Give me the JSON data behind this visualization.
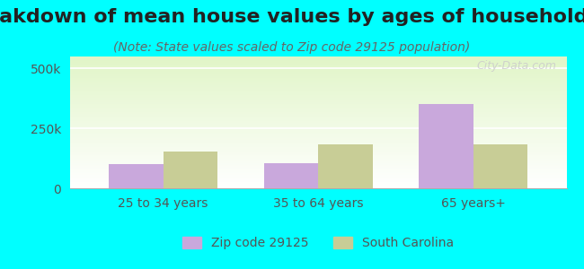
{
  "title": "Breakdown of mean house values by ages of householders",
  "subtitle": "(Note: State values scaled to Zip code 29125 population)",
  "categories": [
    "25 to 34 years",
    "35 to 64 years",
    "65 years+"
  ],
  "zip_values": [
    100000,
    105000,
    350000
  ],
  "state_values": [
    155000,
    185000,
    185000
  ],
  "zip_color": "#c9a8dc",
  "state_color": "#c8cd96",
  "ylim": [
    0,
    550000
  ],
  "ytick_labels": [
    "0",
    "250k",
    "500k"
  ],
  "ytick_values": [
    0,
    250000,
    500000
  ],
  "bar_width": 0.35,
  "background_color": "#00ffff",
  "legend_zip_label": "Zip code 29125",
  "legend_state_label": "South Carolina",
  "watermark": "City-Data.com",
  "title_fontsize": 16,
  "subtitle_fontsize": 10,
  "tick_fontsize": 10,
  "legend_fontsize": 10
}
